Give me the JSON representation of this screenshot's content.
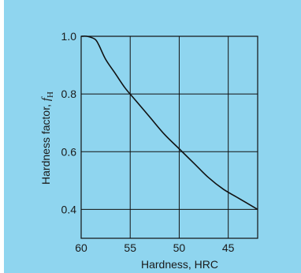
{
  "chart_data": {
    "type": "line",
    "xlabel": "Hardness, HRC",
    "ylabel_main": "Hardness factor, ",
    "ylabel_symbol": "f",
    "ylabel_subscript": "H",
    "xlim": [
      60,
      42
    ],
    "ylim": [
      0.3,
      1.0
    ],
    "x_ticks": [
      60,
      55,
      50,
      45
    ],
    "x_tick_labels": [
      "60",
      "55",
      "50",
      "45"
    ],
    "y_ticks": [
      1.0,
      0.8,
      0.6,
      0.4
    ],
    "y_tick_labels": [
      "1.0",
      "0.8",
      "0.6",
      "0.4"
    ],
    "grid": true,
    "series": [
      {
        "x": [
          60,
          59.4,
          58.6,
          58.2,
          57.5,
          56.5,
          55.5,
          54.5,
          53.0,
          51.5,
          50.0,
          48.5,
          47.0,
          45.5,
          44.0,
          42.0
        ],
        "y": [
          1.0,
          1.0,
          0.99,
          0.97,
          0.92,
          0.87,
          0.82,
          0.78,
          0.72,
          0.66,
          0.61,
          0.56,
          0.51,
          0.47,
          0.44,
          0.4
        ]
      }
    ]
  }
}
